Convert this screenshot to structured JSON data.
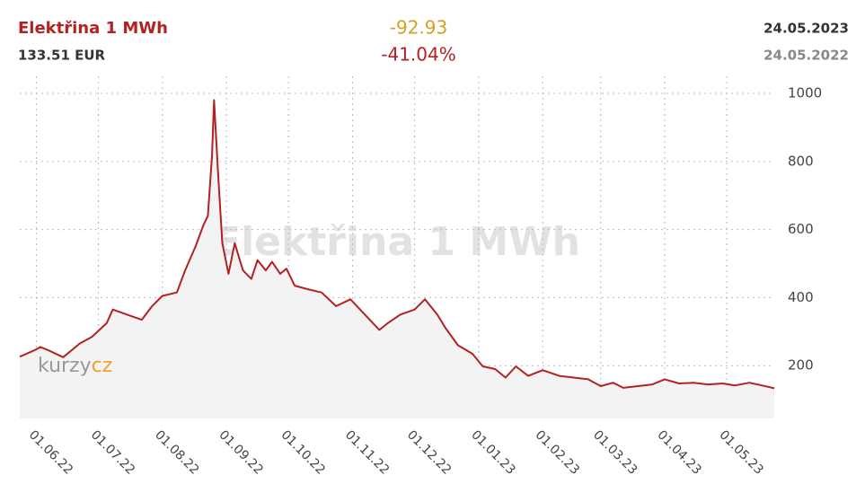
{
  "chart_data": {
    "type": "line",
    "title": "Elektřina 1 MWh",
    "price": "133.51 EUR",
    "change": "-92.93",
    "change_pct": "-41.04%",
    "date_end": "24.05.2023",
    "date_start": "24.05.2022",
    "logo": {
      "left": "kurzy",
      "right": "cz"
    },
    "x": [
      "24.05.22",
      "31.05.22",
      "03.06.22",
      "07.06.22",
      "14.06.22",
      "22.06.22",
      "28.06.22",
      "05.07.22",
      "08.07.22",
      "15.07.22",
      "22.07.22",
      "27.07.22",
      "01.08.22",
      "08.08.22",
      "12.08.22",
      "17.08.22",
      "21.08.22",
      "23.08.22",
      "25.08.22",
      "26.08.22",
      "28.08.22",
      "30.08.22",
      "02.09.22",
      "05.09.22",
      "09.09.22",
      "13.09.22",
      "16.09.22",
      "20.09.22",
      "23.09.22",
      "27.09.22",
      "30.09.22",
      "04.10.22",
      "10.10.22",
      "17.10.22",
      "24.10.22",
      "31.10.22",
      "07.11.22",
      "14.11.22",
      "18.11.22",
      "24.11.22",
      "01.12.22",
      "06.12.22",
      "12.12.22",
      "16.12.22",
      "22.12.22",
      "29.12.22",
      "03.01.23",
      "09.01.23",
      "14.01.23",
      "19.01.23",
      "25.01.23",
      "01.02.23",
      "09.02.23",
      "16.02.23",
      "23.02.23",
      "01.03.23",
      "07.03.23",
      "12.03.23",
      "19.03.23",
      "26.03.23",
      "01.04.23",
      "08.04.23",
      "15.04.23",
      "22.04.23",
      "29.04.23",
      "05.05.23",
      "12.05.23",
      "18.05.23",
      "24.05.23"
    ],
    "series": [
      {
        "name": "Elektřina 1 MWh",
        "color": "#b22222",
        "values": [
          226.44,
          245,
          255,
          245,
          225,
          265,
          285,
          325,
          365,
          350,
          335,
          375,
          405,
          415,
          480,
          550,
          615,
          640,
          815,
          980,
          760,
          560,
          470,
          560,
          480,
          455,
          510,
          480,
          505,
          470,
          485,
          435,
          425,
          415,
          375,
          395,
          350,
          305,
          325,
          350,
          365,
          395,
          350,
          310,
          260,
          235,
          198,
          190,
          165,
          198,
          170,
          187,
          170,
          165,
          160,
          140,
          150,
          135,
          140,
          145,
          160,
          148,
          150,
          145,
          148,
          142,
          150,
          142,
          133.51
        ]
      }
    ],
    "xlim": [
      "24.05.22",
      "24.05.23"
    ],
    "xticks": [
      "01.06.22",
      "01.07.22",
      "01.08.22",
      "01.09.22",
      "01.10.22",
      "01.11.22",
      "01.12.22",
      "01.01.23",
      "01.02.23",
      "01.03.23",
      "01.04.23",
      "01.05.23"
    ],
    "ylim": [
      45,
      1050
    ],
    "yticks": [
      200,
      400,
      600,
      800,
      1000
    ],
    "grid": true
  }
}
